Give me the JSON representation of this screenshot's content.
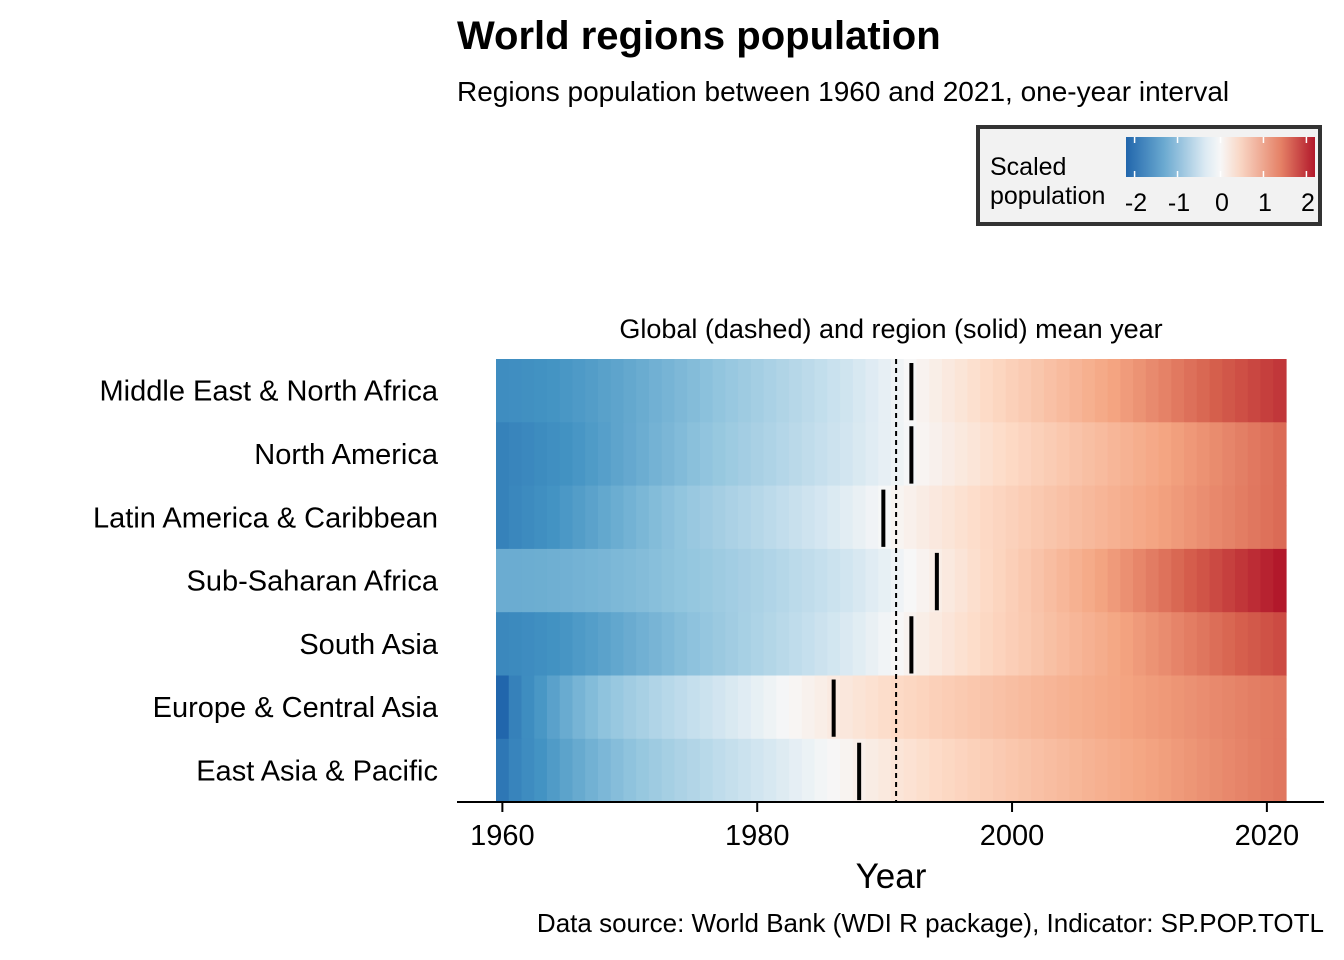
{
  "chart_data": {
    "type": "heatmap",
    "title": "World regions population",
    "subtitle": "Regions population between 1960 and 2021, one-year interval",
    "facet_label": "Global (dashed) and region (solid) mean year",
    "xlabel": "Year",
    "ylabel": "",
    "caption": "Data source: World Bank (WDI R package), Indicator: SP.POP.TOTL",
    "x_range": [
      1960,
      2021
    ],
    "x_ticks": [
      1960,
      1980,
      2000,
      2020
    ],
    "legend": {
      "title": "Scaled\npopulation",
      "ticks": [
        -2,
        -1,
        0,
        1,
        2
      ],
      "range": [
        -2.2,
        2.2
      ],
      "position": "top-right"
    },
    "global_mean_year": 1990.9,
    "regions": [
      {
        "name": "Middle East & North Africa",
        "mean_year": 1992.1,
        "start": -1.6,
        "end": 2.1,
        "curve": 1.3
      },
      {
        "name": "North America",
        "mean_year": 1992.1,
        "start": -1.8,
        "end": 1.6,
        "curve": 1.0
      },
      {
        "name": "Latin America & Caribbean",
        "mean_year": 1989.9,
        "start": -1.8,
        "end": 1.6,
        "curve": 0.9
      },
      {
        "name": "Sub-Saharan Africa",
        "mean_year": 1994.1,
        "start": -1.2,
        "end": 2.4,
        "curve": 1.7
      },
      {
        "name": "South Asia",
        "mean_year": 1992.1,
        "start": -1.7,
        "end": 1.9,
        "curve": 1.1
      },
      {
        "name": "Europe & Central Asia",
        "mean_year": 1986.0,
        "start": -2.3,
        "end": 1.5,
        "curve": 0.5
      },
      {
        "name": "East Asia & Pacific",
        "mean_year": 1988.0,
        "start": -2.0,
        "end": 1.5,
        "curve": 0.65
      }
    ],
    "colors": {
      "negative": "#2166ac",
      "mid": "#f7f7f7",
      "positive": "#b2182b",
      "mean_line": "#000000"
    }
  }
}
